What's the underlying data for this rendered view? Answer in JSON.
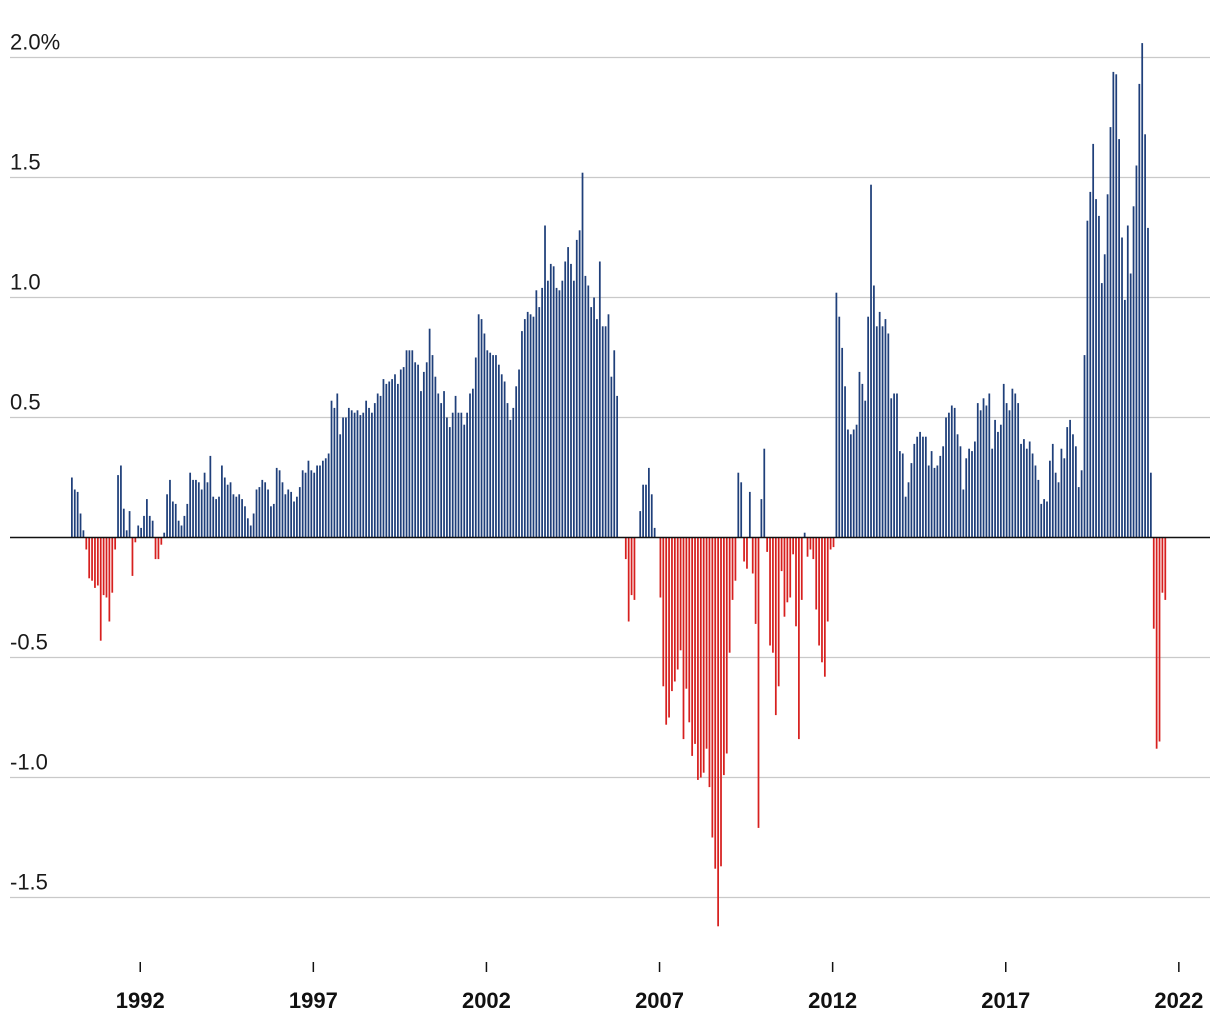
{
  "chart_data": {
    "type": "bar",
    "title": "",
    "xlabel": "",
    "ylabel": "",
    "ylim": [
      -1.75,
      2.2
    ],
    "y_ticks": [
      {
        "value": 2.0,
        "label": "2.0%"
      },
      {
        "value": 1.5,
        "label": "1.5"
      },
      {
        "value": 1.0,
        "label": "1.0"
      },
      {
        "value": 0.5,
        "label": "0.5"
      },
      {
        "value": -0.5,
        "label": "-0.5"
      },
      {
        "value": -1.0,
        "label": "-1.0"
      },
      {
        "value": -1.5,
        "label": "-1.5"
      }
    ],
    "x_ticks": [
      "1992",
      "1997",
      "2002",
      "2007",
      "2012",
      "2017",
      "2022"
    ],
    "x_start": "1990-01",
    "frequency": "monthly",
    "colors": {
      "positive": "#1f3f7a",
      "negative": "#d7201f",
      "grid": "#c9c9c9",
      "zero_line": "#111111"
    },
    "grid": true,
    "legend": "none",
    "values": [
      0.25,
      0.2,
      0.19,
      0.1,
      0.03,
      -0.05,
      -0.17,
      -0.18,
      -0.21,
      -0.2,
      -0.43,
      -0.24,
      -0.25,
      -0.35,
      -0.23,
      -0.05,
      0.26,
      0.3,
      0.12,
      0.03,
      0.11,
      -0.16,
      -0.02,
      0.05,
      0.04,
      0.09,
      0.16,
      0.09,
      0.07,
      -0.09,
      -0.09,
      -0.03,
      0.02,
      0.18,
      0.24,
      0.15,
      0.14,
      0.07,
      0.05,
      0.09,
      0.14,
      0.27,
      0.24,
      0.24,
      0.23,
      0.2,
      0.27,
      0.23,
      0.34,
      0.17,
      0.16,
      0.17,
      0.3,
      0.25,
      0.22,
      0.23,
      0.18,
      0.17,
      0.18,
      0.16,
      0.13,
      0.08,
      0.05,
      0.1,
      0.2,
      0.21,
      0.24,
      0.23,
      0.2,
      0.13,
      0.14,
      0.29,
      0.28,
      0.23,
      0.18,
      0.2,
      0.19,
      0.15,
      0.17,
      0.21,
      0.28,
      0.27,
      0.32,
      0.28,
      0.27,
      0.3,
      0.3,
      0.32,
      0.33,
      0.35,
      0.57,
      0.54,
      0.6,
      0.43,
      0.5,
      0.5,
      0.54,
      0.53,
      0.52,
      0.53,
      0.51,
      0.52,
      0.57,
      0.54,
      0.52,
      0.56,
      0.6,
      0.59,
      0.66,
      0.64,
      0.65,
      0.66,
      0.68,
      0.64,
      0.7,
      0.71,
      0.78,
      0.78,
      0.78,
      0.73,
      0.72,
      0.61,
      0.69,
      0.73,
      0.87,
      0.76,
      0.67,
      0.6,
      0.56,
      0.61,
      0.5,
      0.46,
      0.52,
      0.59,
      0.52,
      0.52,
      0.47,
      0.52,
      0.6,
      0.62,
      0.75,
      0.93,
      0.91,
      0.85,
      0.78,
      0.77,
      0.76,
      0.76,
      0.72,
      0.68,
      0.65,
      0.56,
      0.49,
      0.54,
      0.63,
      0.7,
      0.86,
      0.91,
      0.94,
      0.93,
      0.92,
      1.03,
      0.96,
      1.04,
      1.3,
      1.07,
      1.14,
      1.13,
      1.04,
      1.03,
      1.07,
      1.15,
      1.21,
      1.14,
      1.07,
      1.24,
      1.28,
      1.52,
      1.09,
      1.05,
      0.96,
      1.0,
      0.91,
      1.15,
      0.88,
      0.88,
      0.93,
      0.67,
      0.78,
      0.59,
      0.0,
      0.0,
      -0.09,
      -0.35,
      -0.24,
      -0.26,
      0.0,
      0.11,
      0.22,
      0.22,
      0.29,
      0.18,
      0.04,
      0.0,
      -0.25,
      -0.62,
      -0.78,
      -0.75,
      -0.64,
      -0.6,
      -0.55,
      -0.47,
      -0.84,
      -0.63,
      -0.77,
      -0.91,
      -0.86,
      -1.01,
      -1.0,
      -0.98,
      -0.88,
      -1.04,
      -1.25,
      -1.38,
      -1.62,
      -1.37,
      -0.99,
      -0.9,
      -0.48,
      -0.26,
      -0.18,
      0.27,
      0.23,
      -0.1,
      -0.13,
      0.19,
      -0.15,
      -0.36,
      -1.21,
      0.16,
      0.37,
      -0.06,
      -0.45,
      -0.48,
      -0.74,
      -0.62,
      -0.14,
      -0.33,
      -0.27,
      -0.25,
      -0.07,
      -0.37,
      -0.84,
      -0.26,
      0.02,
      -0.08,
      -0.05,
      -0.09,
      -0.3,
      -0.45,
      -0.52,
      -0.58,
      -0.35,
      -0.05,
      -0.04,
      1.02,
      0.92,
      0.79,
      0.63,
      0.45,
      0.43,
      0.45,
      0.47,
      0.69,
      0.64,
      0.57,
      0.92,
      1.47,
      1.05,
      0.88,
      0.94,
      0.88,
      0.91,
      0.85,
      0.58,
      0.6,
      0.6,
      0.36,
      0.35,
      0.17,
      0.23,
      0.31,
      0.39,
      0.42,
      0.44,
      0.42,
      0.42,
      0.3,
      0.36,
      0.29,
      0.3,
      0.34,
      0.38,
      0.5,
      0.52,
      0.55,
      0.54,
      0.43,
      0.38,
      0.2,
      0.33,
      0.37,
      0.36,
      0.4,
      0.56,
      0.53,
      0.58,
      0.55,
      0.6,
      0.37,
      0.49,
      0.44,
      0.47,
      0.64,
      0.56,
      0.53,
      0.62,
      0.6,
      0.56,
      0.39,
      0.41,
      0.37,
      0.4,
      0.35,
      0.3,
      0.24,
      0.14,
      0.16,
      0.15,
      0.32,
      0.39,
      0.27,
      0.23,
      0.37,
      0.33,
      0.46,
      0.49,
      0.43,
      0.38,
      0.21,
      0.28,
      0.76,
      1.32,
      1.44,
      1.64,
      1.41,
      1.34,
      1.06,
      1.18,
      1.43,
      1.71,
      1.94,
      1.93,
      1.66,
      1.25,
      0.99,
      1.3,
      1.1,
      1.38,
      1.55,
      1.89,
      2.06,
      1.68,
      1.29,
      0.27,
      -0.38,
      -0.88,
      -0.85,
      -0.23,
      -0.26
    ]
  }
}
